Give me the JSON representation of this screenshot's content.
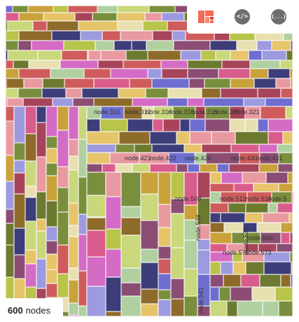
{
  "toolbar": {
    "buttons": [
      {
        "name": "treemap-view-button",
        "icon": "treemap-icon",
        "color": "#f26b57"
      },
      {
        "name": "code-view-button",
        "icon": "code-icon",
        "glyph": "</>",
        "color": "#6e6e6e"
      },
      {
        "name": "json-view-button",
        "icon": "json-braces-icon",
        "glyph": "{...}",
        "color": "#6e6e6e"
      }
    ]
  },
  "status": {
    "count": "600",
    "unit": "nodes"
  },
  "palette": [
    "#3d3d7a",
    "#c9d87a",
    "#8b4d73",
    "#d95d8c",
    "#7a8f3d",
    "#e6c46a",
    "#9e9ae0",
    "#cf5c5c",
    "#e8e0b0",
    "#c9a23c",
    "#6e6ed0",
    "#8e6b2a",
    "#d46bc4",
    "#e89aa0",
    "#b0d0a0",
    "#b8c44a",
    "#6b7a2e",
    "#a8445a"
  ],
  "node_labels": [
    "node.310",
    "node.312",
    "node.314",
    "node.316",
    "node.318",
    "node.320",
    "node.321",
    "node.421",
    "node.422",
    "node.426",
    "node.430",
    "node.431",
    "node.508",
    "node.512",
    "node.514",
    "node.5",
    "node.534",
    "node.539",
    "node.560",
    "node.572",
    "node.573",
    "node.541"
  ]
}
